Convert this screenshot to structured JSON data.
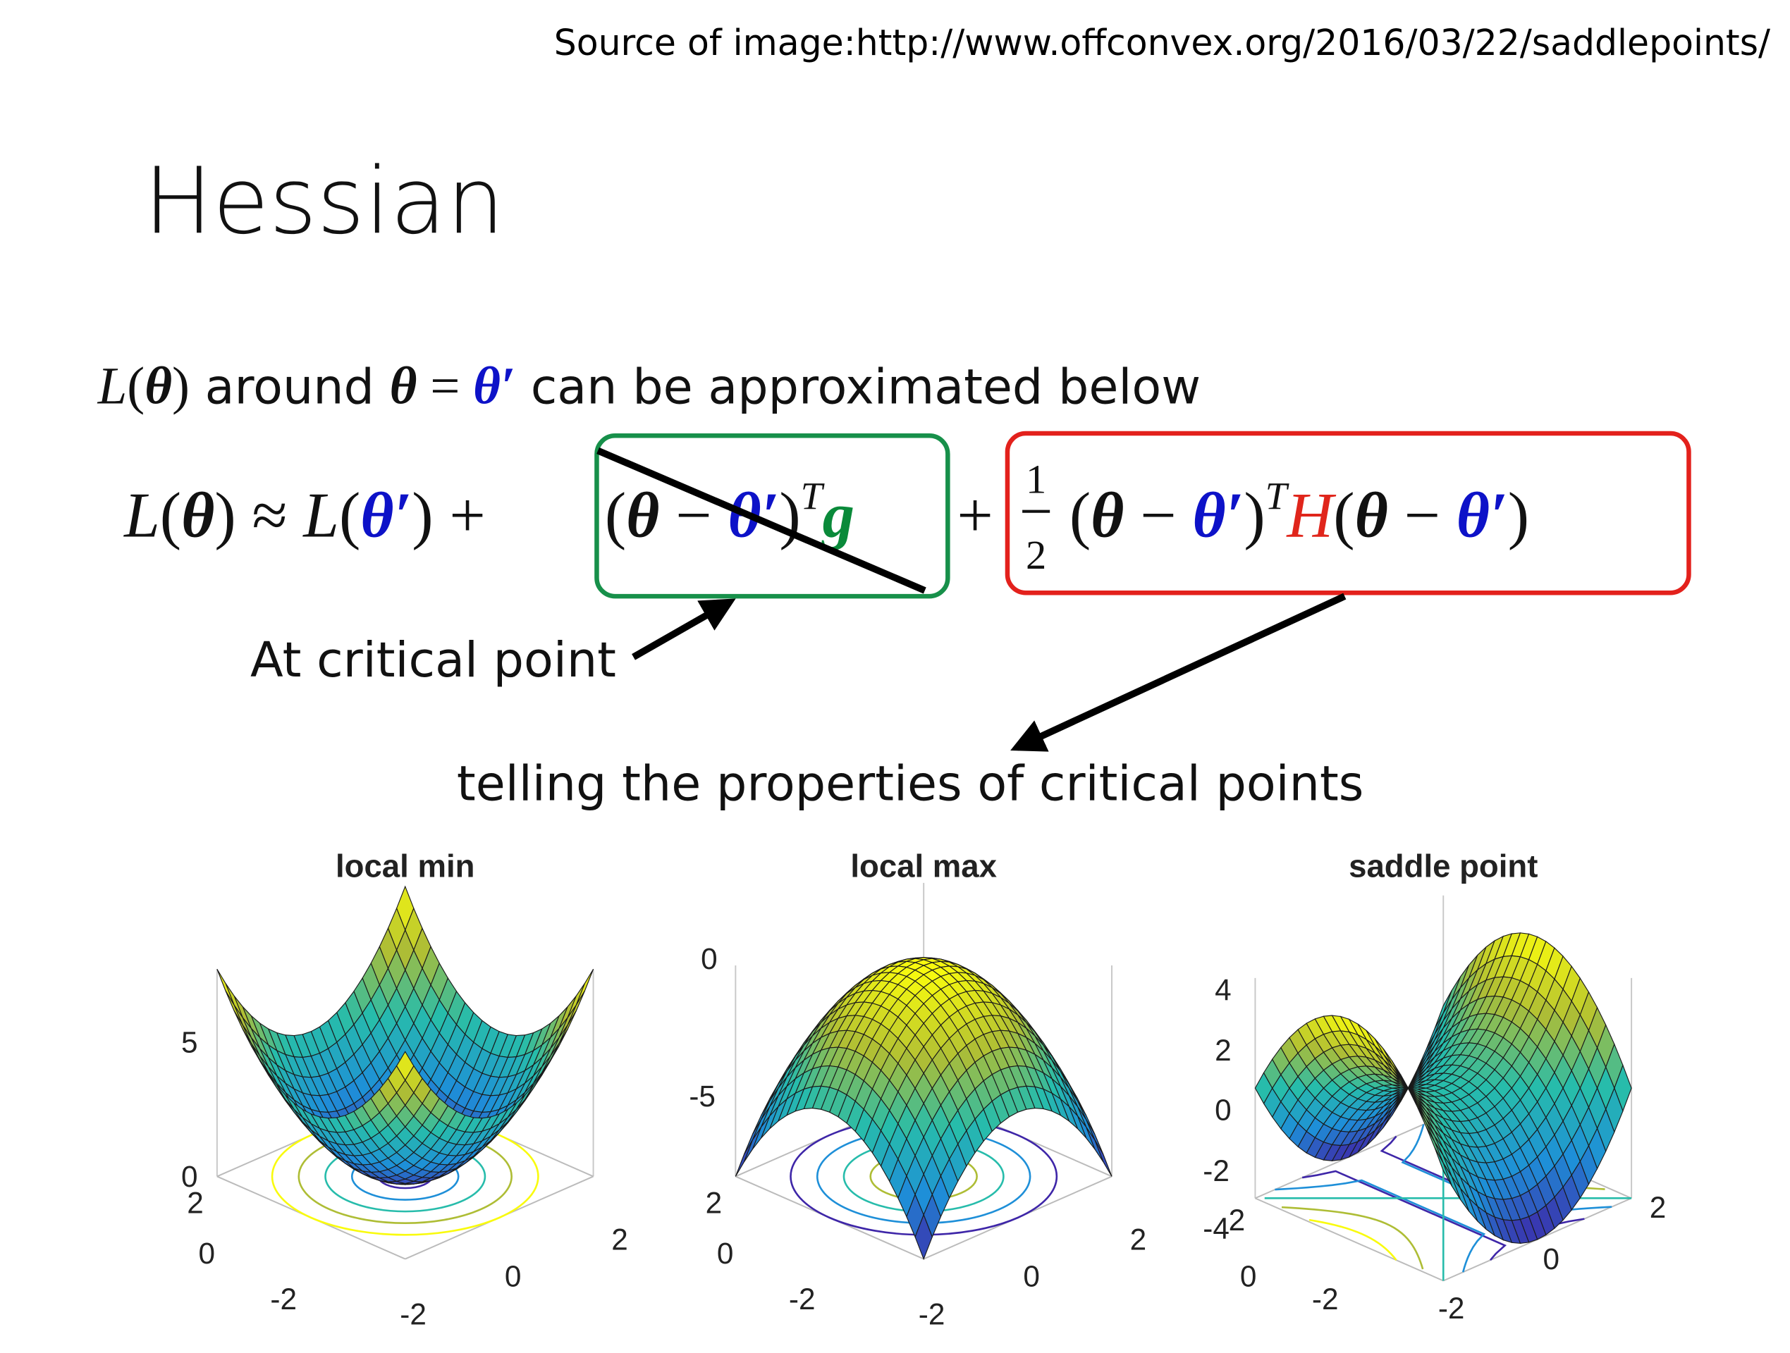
{
  "source": "Source of image:http://www.offconvex.org/2016/03/22/saddlepoints/",
  "title": "Hessian",
  "statement": [
    "L",
    "(",
    "θ",
    ")",
    " around ",
    "θ",
    " = ",
    "θ′",
    " can be approximated below"
  ],
  "formula": {
    "lhs": [
      "L",
      "(",
      "θ",
      ") ≈ ",
      "L",
      "(",
      "θ′",
      ") +"
    ],
    "gradient_term": [
      "(",
      "θ",
      " − ",
      "θ′",
      ")",
      "T",
      "g"
    ],
    "plus": "+",
    "fraction": [
      "1",
      "2"
    ],
    "hessian_term": [
      "(",
      "θ",
      " − ",
      "θ′",
      ")",
      "T",
      "H",
      "(",
      "θ",
      " − ",
      "θ′",
      ")"
    ]
  },
  "annotations": {
    "critical": "At critical point",
    "properties": "telling the properties of critical points"
  },
  "plots": [
    {
      "title": "local min",
      "z_ticks": [
        "5",
        "0"
      ],
      "y_ticks": [
        "2",
        "0",
        "-2"
      ],
      "x_ticks": [
        "-2",
        "0",
        "2"
      ]
    },
    {
      "title": "local max",
      "z_ticks": [
        "0",
        "-5"
      ],
      "y_ticks": [
        "2",
        "0",
        "-2"
      ],
      "x_ticks": [
        "-2",
        "0",
        "2"
      ]
    },
    {
      "title": "saddle point",
      "z_ticks": [
        "4",
        "2",
        "0",
        "-2",
        "-4"
      ],
      "y_ticks": [
        "2",
        "0",
        "-2"
      ],
      "x_ticks": [
        "-2",
        "0",
        "2"
      ]
    }
  ]
}
